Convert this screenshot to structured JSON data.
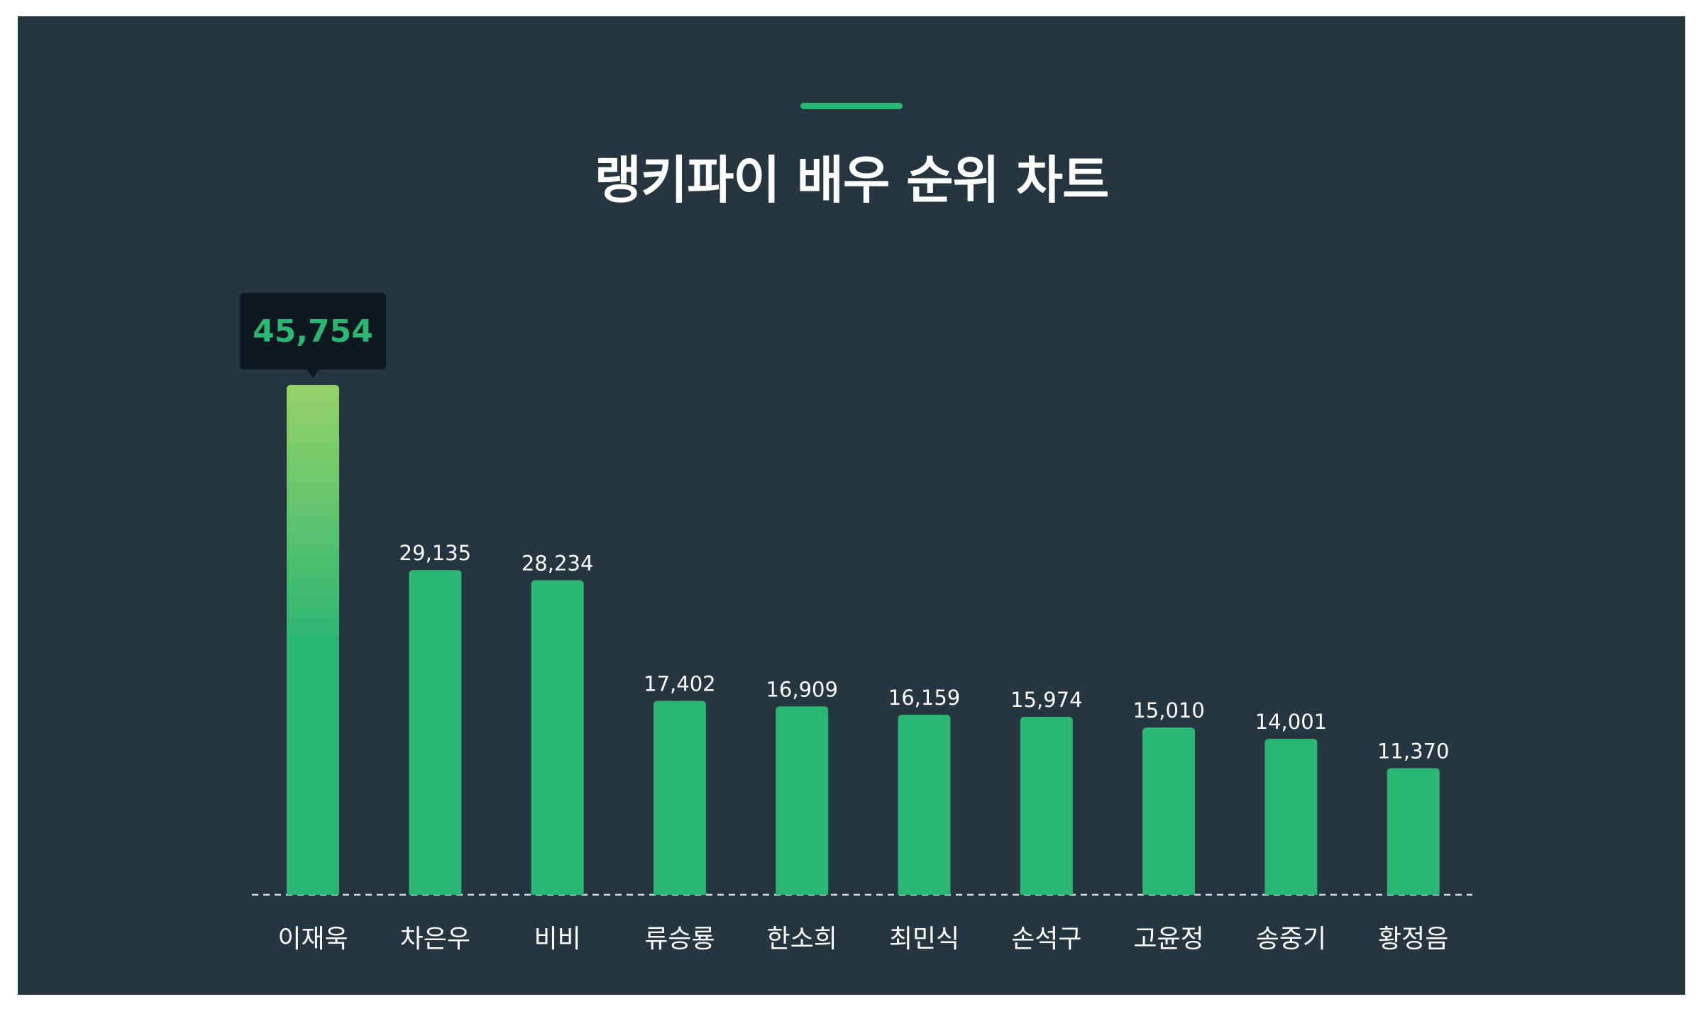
{
  "colors": {
    "background": "#263641",
    "bar": "#2bb673",
    "highlight_top": "#95d267",
    "accent": "#2bb673",
    "tooltip_bg": "#0e1820",
    "tooltip_text": "#2bb673",
    "text": "#ffffff",
    "baseline": "#d9dee2"
  },
  "chart_data": {
    "type": "bar",
    "title": "랭키파이 배우 순위 차트",
    "xlabel": "",
    "ylabel": "",
    "categories": [
      "이재욱",
      "차은우",
      "비비",
      "류승룡",
      "한소희",
      "최민식",
      "손석구",
      "고윤정",
      "송중기",
      "황정음"
    ],
    "values": [
      45754,
      29135,
      28234,
      17402,
      16909,
      16159,
      15974,
      15010,
      14001,
      11370
    ],
    "value_labels": [
      "45,754",
      "29,135",
      "28,234",
      "17,402",
      "16,909",
      "16,159",
      "15,974",
      "15,010",
      "14,001",
      "11,370"
    ],
    "highlight_index": 0,
    "ylim": [
      0,
      45754
    ],
    "grid": false,
    "legend": "none"
  }
}
